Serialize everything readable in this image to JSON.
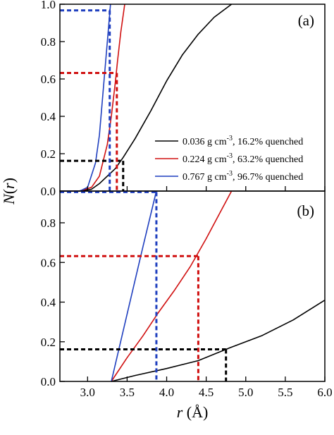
{
  "chart_data": [
    {
      "panel": "a",
      "type": "line",
      "panel_label": "(a)",
      "xlim": [
        2.65,
        6.0
      ],
      "ylim": [
        0.0,
        1.0
      ],
      "yticks": [
        "0.0",
        "0.2",
        "0.4",
        "0.6",
        "0.8",
        "1.0"
      ],
      "xticks": [],
      "grid": false,
      "legend_position": "lower-right",
      "series": [
        {
          "name": "0.036 g cm-3, 16.2% quenched",
          "color": "#000000",
          "x": [
            2.65,
            2.9,
            3.05,
            3.15,
            3.25,
            3.35,
            3.45,
            3.6,
            3.8,
            4.0,
            4.2,
            4.4,
            4.6,
            4.82
          ],
          "y": [
            0.0,
            0.001,
            0.01,
            0.04,
            0.08,
            0.12,
            0.18,
            0.28,
            0.43,
            0.59,
            0.73,
            0.84,
            0.93,
            1.0
          ]
        },
        {
          "name": "0.224 g cm-3, 63.2% quenched",
          "color": "#d01010",
          "x": [
            2.65,
            2.9,
            3.05,
            3.15,
            3.25,
            3.3,
            3.35,
            3.38,
            3.42,
            3.47
          ],
          "y": [
            0.0,
            0.0,
            0.02,
            0.08,
            0.25,
            0.4,
            0.58,
            0.7,
            0.85,
            1.0
          ]
        },
        {
          "name": "0.767 g cm-3, 96.7% quenched",
          "color": "#1f3fbf",
          "x": [
            2.65,
            2.9,
            3.0,
            3.1,
            3.15,
            3.2,
            3.24,
            3.27,
            3.29
          ],
          "y": [
            0.0,
            0.0,
            0.02,
            0.15,
            0.3,
            0.55,
            0.75,
            0.9,
            1.0
          ]
        }
      ],
      "markers": [
        {
          "color": "#000000",
          "x": 3.45,
          "y": 0.162
        },
        {
          "color": "#d01010",
          "x": 3.37,
          "y": 0.632
        },
        {
          "color": "#1f3fbf",
          "x": 3.28,
          "y": 0.967
        }
      ]
    },
    {
      "panel": "b",
      "type": "line",
      "panel_label": "(b)",
      "xlim": [
        2.65,
        6.0
      ],
      "ylim": [
        0.0,
        0.96
      ],
      "xticks": [
        "3.0",
        "3.5",
        "4.0",
        "4.5",
        "5.0",
        "5.5",
        "6.0"
      ],
      "yticks": [
        "0.0",
        "0.2",
        "0.4",
        "0.6",
        "0.8"
      ],
      "xlabel_var": "r",
      "xlabel_unit": " (Å)",
      "ylabel_var": "N",
      "ylabel_arg": "r",
      "grid": false,
      "series": [
        {
          "name": "0.036 g cm-3, 16.2% quenched",
          "color": "#000000",
          "x": [
            3.3,
            3.6,
            4.0,
            4.4,
            4.8,
            5.2,
            5.6,
            6.0
          ],
          "y": [
            0.0,
            0.03,
            0.065,
            0.105,
            0.17,
            0.23,
            0.31,
            0.41
          ]
        },
        {
          "name": "0.224 g cm-3, 63.2% quenched",
          "color": "#d01010",
          "x": [
            3.3,
            3.5,
            3.7,
            3.9,
            4.1,
            4.3,
            4.5,
            4.7,
            4.82
          ],
          "y": [
            0.0,
            0.12,
            0.23,
            0.35,
            0.46,
            0.58,
            0.72,
            0.87,
            0.96
          ]
        },
        {
          "name": "0.767 g cm-3, 96.7% quenched",
          "color": "#1f3fbf",
          "x": [
            3.3,
            3.5,
            3.7,
            3.87
          ],
          "y": [
            0.0,
            0.34,
            0.68,
            0.96
          ]
        }
      ],
      "markers": [
        {
          "color": "#000000",
          "x": 4.75,
          "y": 0.162
        },
        {
          "color": "#d01010",
          "x": 4.4,
          "y": 0.632
        },
        {
          "color": "#1f3fbf",
          "x": 3.87,
          "y": 0.955
        }
      ]
    }
  ],
  "legend": [
    {
      "value": "0.036",
      "unit": " g cm",
      "exp": "-3",
      "rest": ", 16.2% quenched",
      "color": "#000000"
    },
    {
      "value": "0.224",
      "unit": " g cm",
      "exp": "-3",
      "rest": ", 63.2% quenched",
      "color": "#d01010"
    },
    {
      "value": "0.767",
      "unit": " g cm",
      "exp": "-3",
      "rest": ", 96.7% quenched",
      "color": "#1f3fbf"
    }
  ]
}
